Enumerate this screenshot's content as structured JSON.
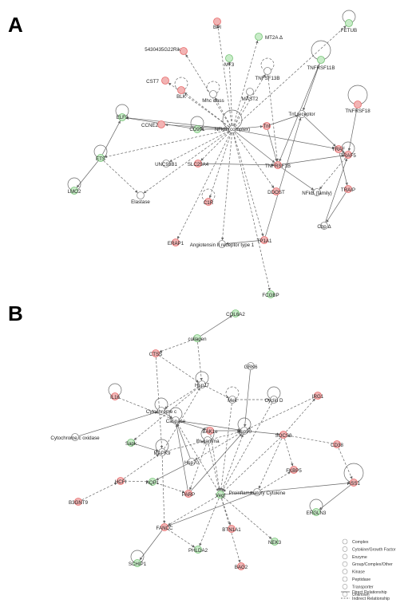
{
  "panels": [
    {
      "label": "A",
      "nodes": [
        {
          "id": "BPI",
          "label": "BPI",
          "color": "red"
        },
        {
          "id": "FETUB",
          "label": "FETUB",
          "color": "green"
        },
        {
          "id": "MT2A",
          "label": "MT2A Δ",
          "color": "green"
        },
        {
          "id": "RIK",
          "label": "5430435G22Rik",
          "color": "red"
        },
        {
          "id": "MT3",
          "label": "MT3",
          "color": "green"
        },
        {
          "id": "TNFRSF11B",
          "label": "TNFRSF11B",
          "color": "green"
        },
        {
          "id": "TNFSF13B",
          "label": "TNFSF13B",
          "color": "white"
        },
        {
          "id": "CST7",
          "label": "CST7",
          "color": "red"
        },
        {
          "id": "BLK",
          "label": "BLK",
          "color": "red"
        },
        {
          "id": "MHC",
          "label": "Mhc class",
          "color": "white"
        },
        {
          "id": "MAST2",
          "label": "MAST2",
          "color": "white"
        },
        {
          "id": "TNFRSF18",
          "label": "TNFRSF18",
          "color": "red"
        },
        {
          "id": "ELF3",
          "label": "ELF3",
          "color": "green"
        },
        {
          "id": "CCNE2",
          "label": "CCNE2",
          "color": "red"
        },
        {
          "id": "CD99",
          "label": "CD99L",
          "color": "green"
        },
        {
          "id": "NFKB",
          "label": "NFkB (complex)",
          "color": "white"
        },
        {
          "id": "TNF",
          "label": "Tnf",
          "color": "red"
        },
        {
          "id": "TNFR",
          "label": "Tnf receptor",
          "color": "white"
        },
        {
          "id": "TRAF",
          "label": "TRAF",
          "color": "red"
        },
        {
          "id": "TRAF5",
          "label": "TRAF5",
          "color": "red"
        },
        {
          "id": "ETS",
          "label": "ETS",
          "color": "green"
        },
        {
          "id": "UNC93B1",
          "label": "UNC93B1",
          "color": "white"
        },
        {
          "id": "SLC25A4",
          "label": "SLC25A4",
          "color": "red"
        },
        {
          "id": "TNFRSF1B",
          "label": "TNFRSF1B",
          "color": "red"
        },
        {
          "id": "LMO2",
          "label": "LMO2",
          "color": "green"
        },
        {
          "id": "DDOST",
          "label": "DDOST",
          "color": "red"
        },
        {
          "id": "NFKBF",
          "label": "NFkB (family)",
          "color": "white"
        },
        {
          "id": "TRAIP",
          "label": "TRAIP",
          "color": "red"
        },
        {
          "id": "ELASTASE",
          "label": "Elastase",
          "color": "white"
        },
        {
          "id": "C1R",
          "label": "C1R",
          "color": "red"
        },
        {
          "id": "CBP",
          "label": "Cbp Δ",
          "color": "white"
        },
        {
          "id": "ERAP1",
          "label": "ERAP1",
          "color": "red"
        },
        {
          "id": "AGTR",
          "label": "Angiotensin II receptor type 1",
          "color": "white"
        },
        {
          "id": "TP1A1",
          "label": "TP1A1",
          "color": "red"
        },
        {
          "id": "FCGBP",
          "label": "FCGBP",
          "color": "green"
        }
      ]
    },
    {
      "label": "B",
      "nodes": [
        {
          "id": "COL6A2",
          "label": "COL6A2",
          "color": "green"
        },
        {
          "id": "COLLAGEN",
          "label": "collagen",
          "color": "green"
        },
        {
          "id": "CTSS",
          "label": "CTSS",
          "color": "red"
        },
        {
          "id": "GRK6",
          "label": "GRK6",
          "color": "white"
        },
        {
          "id": "HSP27",
          "label": "Hsp27",
          "color": "white"
        },
        {
          "id": "IL16",
          "label": "IL16",
          "color": "red"
        },
        {
          "id": "MEK",
          "label": "Mek",
          "color": "white"
        },
        {
          "id": "CYCD",
          "label": "Cyclin D",
          "color": "white"
        },
        {
          "id": "IRG1",
          "label": "IRG1",
          "color": "red"
        },
        {
          "id": "CYTC",
          "label": "Cytochrome c",
          "color": "white"
        },
        {
          "id": "CASPASE",
          "label": "Caspase",
          "color": "white"
        },
        {
          "id": "BAK1",
          "label": "BAK1e",
          "color": "red"
        },
        {
          "id": "HSP90",
          "label": "Hsp90",
          "color": "white"
        },
        {
          "id": "SOCS3",
          "label": "SOCS3",
          "color": "red"
        },
        {
          "id": "CYTCOX",
          "label": "Cytochrome c oxidase",
          "color": "white"
        },
        {
          "id": "CD38",
          "label": "CD38",
          "color": "red"
        },
        {
          "id": "SAPK",
          "label": "Sapk",
          "color": "green"
        },
        {
          "id": "MAPK9",
          "label": "MAPK9",
          "color": "white"
        },
        {
          "id": "IFNG",
          "label": "Ifn gamma",
          "color": "white"
        },
        {
          "id": "HSP70",
          "label": "Hsp70",
          "color": "white"
        },
        {
          "id": "FKBP5",
          "label": "FKBP5",
          "color": "red"
        },
        {
          "id": "HCFC1",
          "label": "HCFI",
          "color": "red"
        },
        {
          "id": "AQP1",
          "label": "AQP1",
          "color": "green"
        },
        {
          "id": "PARP",
          "label": "PARP",
          "color": "red"
        },
        {
          "id": "VEGF",
          "label": "Vegf",
          "color": "green"
        },
        {
          "id": "PROINF",
          "label": "Proinflammatory Cytokine",
          "color": "white"
        },
        {
          "id": "ASS1",
          "label": "ASS1",
          "color": "red"
        },
        {
          "id": "B3GNT9",
          "label": "B3GNT9",
          "color": "red"
        },
        {
          "id": "EPSTI1",
          "label": "ERGLN3",
          "color": "green"
        },
        {
          "id": "FANCC",
          "label": "FANCC",
          "color": "red"
        },
        {
          "id": "BTN1A1",
          "label": "BTN1A1",
          "color": "red"
        },
        {
          "id": "NEK3",
          "label": "NEK3",
          "color": "green"
        },
        {
          "id": "PHLDA2",
          "label": "PHLDA2",
          "color": "green"
        },
        {
          "id": "SCHIP1",
          "label": "SCHIP1",
          "color": "green"
        },
        {
          "id": "BAG2",
          "label": "BAG2",
          "color": "red"
        }
      ]
    }
  ],
  "legend": {
    "items": [
      {
        "shape": "complex",
        "label": "Complex"
      },
      {
        "shape": "cytokine",
        "label": "Cytokine/Growth Factor"
      },
      {
        "shape": "enzyme",
        "label": "Enzyme"
      },
      {
        "shape": "group",
        "label": "Group/Complex/Other"
      },
      {
        "shape": "kinase",
        "label": "Kinase"
      },
      {
        "shape": "peptidase",
        "label": "Peptidase"
      },
      {
        "shape": "transporter",
        "label": "Transporter"
      },
      {
        "shape": "unknown",
        "label": "Unknown"
      }
    ],
    "lines": [
      {
        "style": "solid",
        "label": "Direct Relationship"
      },
      {
        "style": "dashed",
        "label": "Indirect Relationship"
      }
    ]
  },
  "colors": {
    "red": "#e86a6a",
    "red_fill": "#f2b4b4",
    "green": "#74c274",
    "green_fill": "#c8ecc8",
    "white": "#ffffff",
    "stroke": "#888888",
    "edge": "#666666"
  }
}
